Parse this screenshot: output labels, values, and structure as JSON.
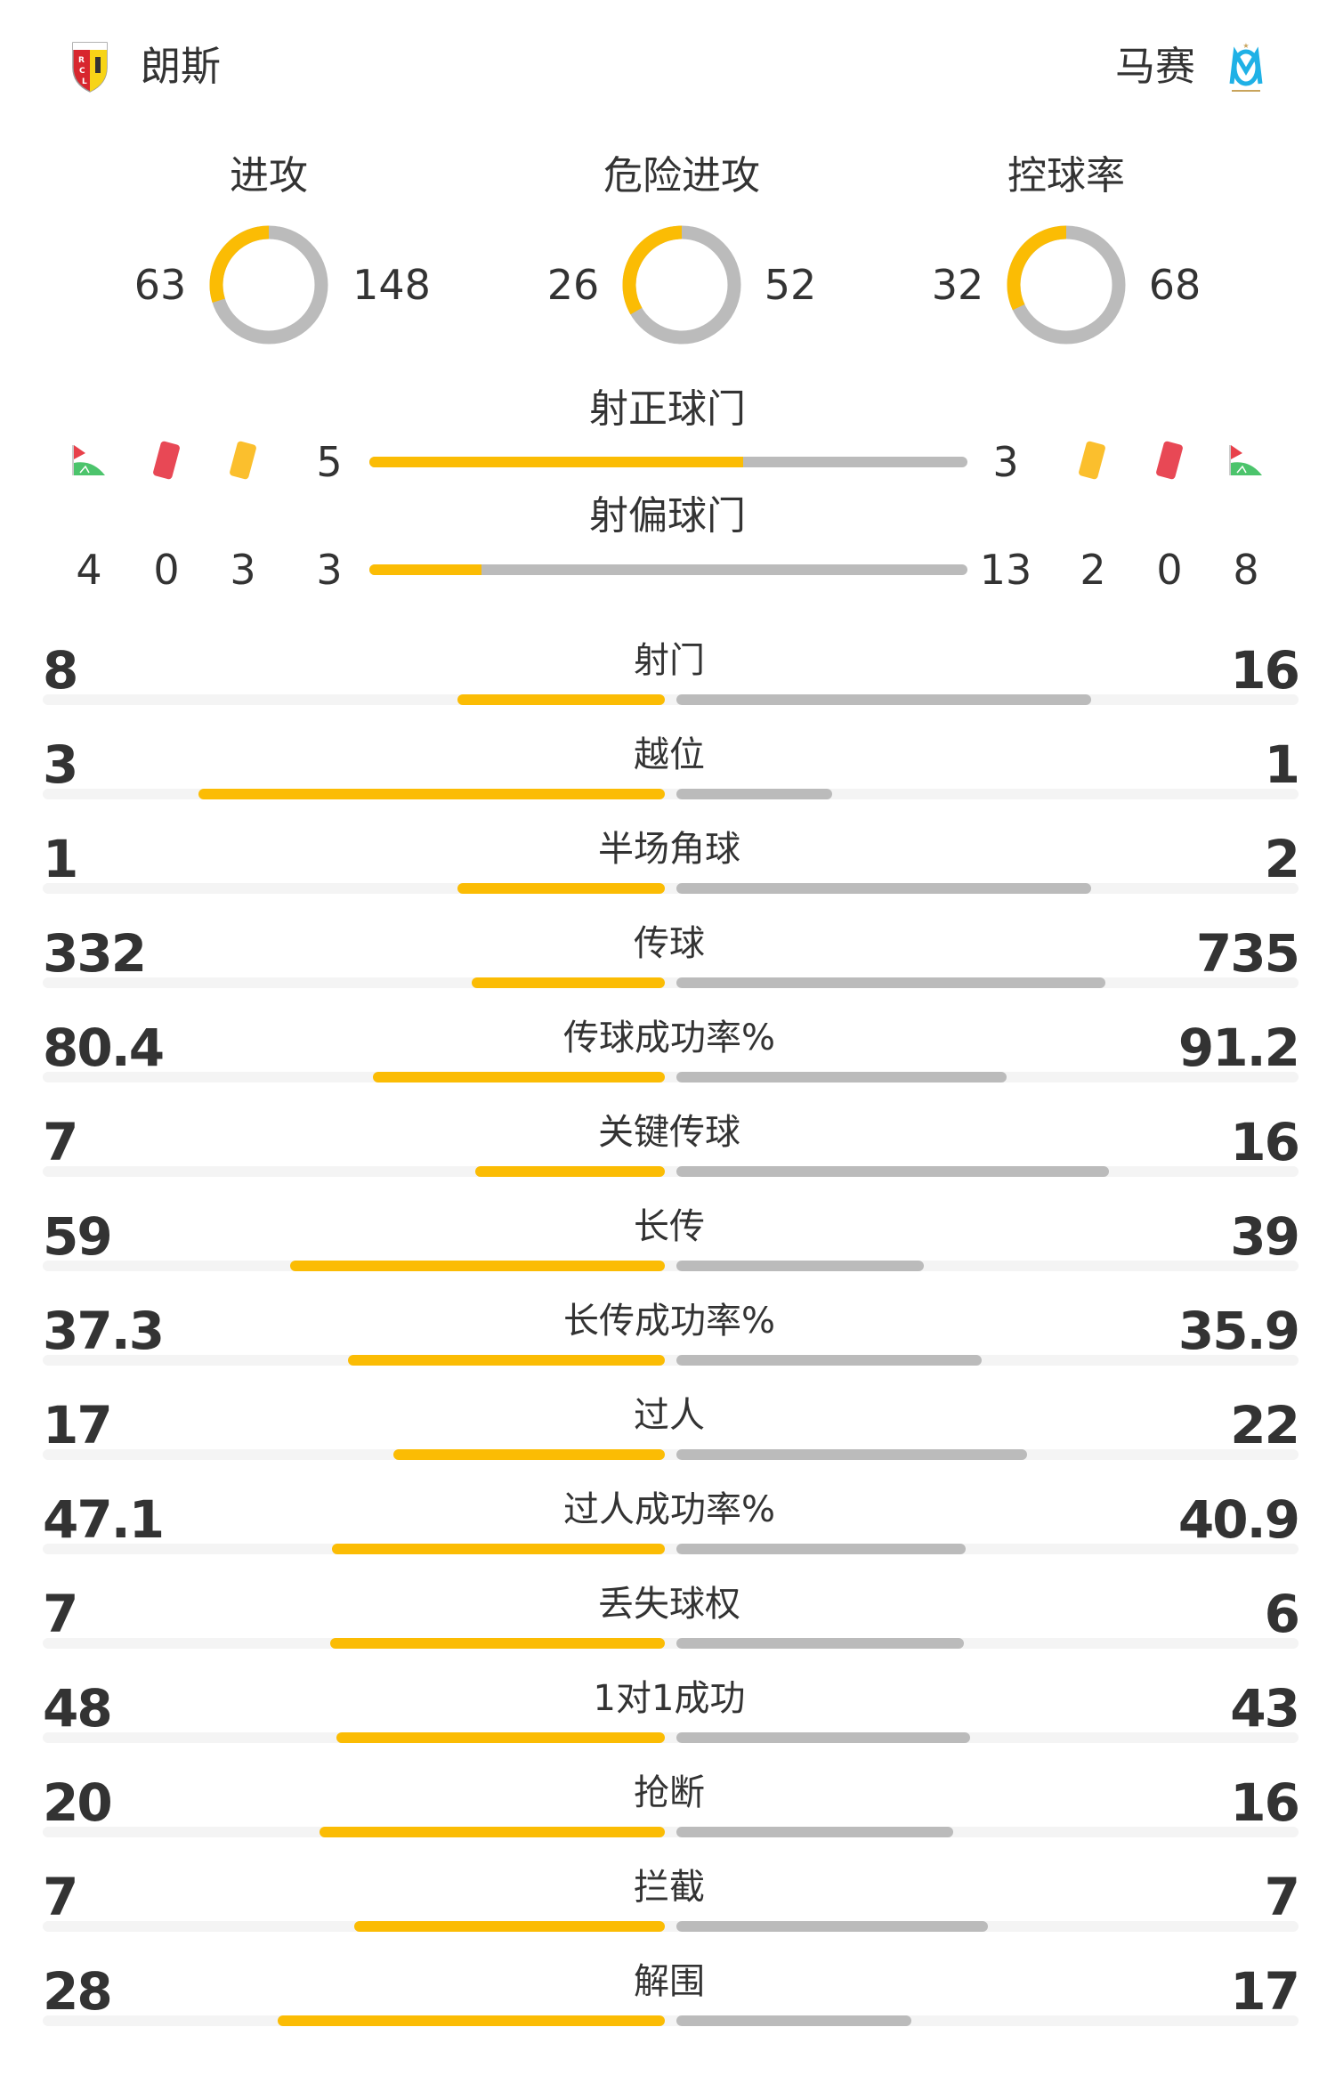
{
  "home": {
    "name": "朗斯",
    "logo_text": "RCL",
    "logo_icon": "rc-lens-crest"
  },
  "away": {
    "name": "马赛",
    "logo_text": "OM",
    "logo_icon": "olympique-marseille-crest"
  },
  "colors": {
    "home": "#fbbc04",
    "away": "#bbbbbb",
    "track": "#f4f4f4",
    "text": "#333333",
    "red_card": "#e84855",
    "yellow_card": "#fbbf2d",
    "corner_flag": "#e8404a",
    "corner_arc": "#4cc46c"
  },
  "donuts": [
    {
      "title": "进攻",
      "home": 63,
      "away": 148
    },
    {
      "title": "危险进攻",
      "home": 26,
      "away": 52
    },
    {
      "title": "控球率",
      "home": 32,
      "away": 68
    }
  ],
  "shots_on": {
    "title": "射正球门",
    "home": 5,
    "away": 3
  },
  "shots_off": {
    "title": "射偏球门",
    "home": 3,
    "away": 13
  },
  "events": {
    "icons": [
      "corner-flag-icon",
      "red-card-icon",
      "yellow-card-icon"
    ],
    "home": {
      "corners": 4,
      "red_cards": 0,
      "yellow_cards": 3
    },
    "away": {
      "yellow_cards": 2,
      "red_cards": 0,
      "corners": 8
    }
  },
  "stats": [
    {
      "label": "射门",
      "home": "8",
      "away": "16"
    },
    {
      "label": "越位",
      "home": "3",
      "away": "1"
    },
    {
      "label": "半场角球",
      "home": "1",
      "away": "2"
    },
    {
      "label": "传球",
      "home": "332",
      "away": "735"
    },
    {
      "label": "传球成功率%",
      "home": "80.4",
      "away": "91.2"
    },
    {
      "label": "关键传球",
      "home": "7",
      "away": "16"
    },
    {
      "label": "长传",
      "home": "59",
      "away": "39"
    },
    {
      "label": "长传成功率%",
      "home": "37.3",
      "away": "35.9"
    },
    {
      "label": "过人",
      "home": "17",
      "away": "22"
    },
    {
      "label": "过人成功率%",
      "home": "47.1",
      "away": "40.9"
    },
    {
      "label": "丢失球权",
      "home": "7",
      "away": "6"
    },
    {
      "label": "1对1成功",
      "home": "48",
      "away": "43"
    },
    {
      "label": "抢断",
      "home": "20",
      "away": "16"
    },
    {
      "label": "拦截",
      "home": "7",
      "away": "7"
    },
    {
      "label": "解围",
      "home": "28",
      "away": "17"
    }
  ]
}
